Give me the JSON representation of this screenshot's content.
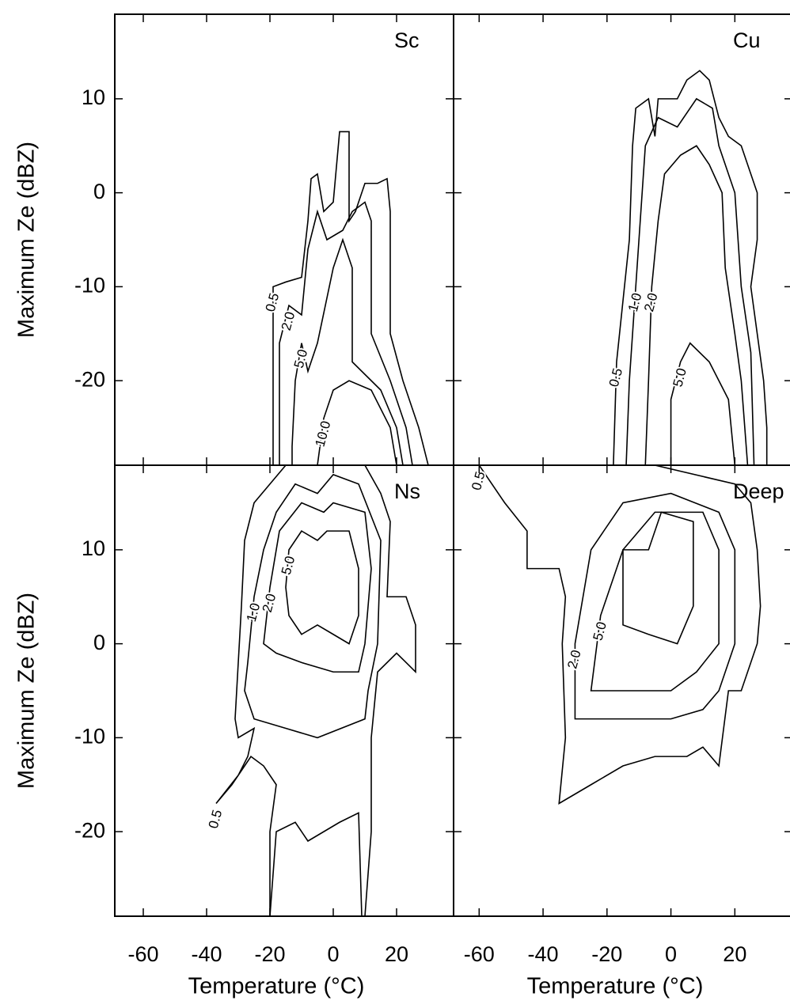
{
  "chart_data": [
    {
      "type": "contour",
      "label": "Sc",
      "ylabel": "Maximum Ze (dBZ)",
      "xlim": [
        -69,
        38
      ],
      "ylim": [
        -29,
        19
      ],
      "xticks": [
        -60,
        -40,
        -20,
        0,
        20
      ],
      "yticks": [
        -20,
        -10,
        0,
        10
      ],
      "show_xtick_labels": false,
      "show_ytick_labels": true,
      "contours": [
        {
          "level": "0.5",
          "rings": [
            {
              "x": [
                -19,
                -19,
                -15,
                -10,
                -8,
                -7,
                -5,
                -3,
                0,
                2,
                5,
                5,
                7,
                10,
                14,
                17,
                18,
                18,
                22,
                27,
                30
              ],
              "y": [
                -29,
                -10,
                -9.5,
                -9,
                -3,
                1.5,
                2,
                -2,
                -1,
                6.5,
                6.5,
                -3,
                -2,
                1,
                1,
                1.5,
                -2,
                -15,
                -20,
                -25,
                -29
              ]
            }
          ]
        },
        {
          "level": "2.0",
          "rings": [
            {
              "x": [
                -17,
                -17,
                -14,
                -10,
                -8,
                -5,
                -2,
                3,
                6,
                10,
                12,
                12,
                18,
                23,
                25
              ],
              "y": [
                -29,
                -16,
                -12,
                -13,
                -6,
                -2,
                -5,
                -4,
                -2,
                -1,
                -3,
                -15,
                -20,
                -25,
                -29
              ]
            }
          ]
        },
        {
          "level": "5.0",
          "rings": [
            {
              "x": [
                -13,
                -12,
                -10,
                -8,
                -5,
                0,
                3,
                6,
                6,
                15,
                20,
                22,
                -13
              ],
              "y": [
                -27,
                -20,
                -16,
                -19,
                -16,
                -8,
                -5,
                -8,
                -18,
                -21,
                -25,
                -29,
                -29
              ]
            }
          ]
        },
        {
          "level": "10.0",
          "rings": [
            {
              "x": [
                -5,
                -3,
                0,
                5,
                12,
                18,
                20
              ],
              "y": [
                -29,
                -24,
                -21,
                -20,
                -21,
                -25,
                -29
              ]
            }
          ]
        }
      ]
    },
    {
      "type": "contour",
      "label": "Cu",
      "xlim": [
        -68,
        38
      ],
      "ylim": [
        -29,
        19
      ],
      "xticks": [
        -60,
        -40,
        -20,
        0,
        20
      ],
      "yticks": [
        -20,
        -10,
        0,
        10
      ],
      "show_xtick_labels": false,
      "show_ytick_labels": false,
      "contours": [
        {
          "level": "0.5",
          "rings": [
            {
              "x": [
                -18,
                -17,
                -13,
                -12,
                -11,
                -7,
                -5,
                -4,
                2,
                5,
                9,
                12,
                15,
                18,
                22,
                25,
                27,
                27,
                25,
                27,
                29,
                30,
                30
              ],
              "y": [
                -29,
                -18,
                -5,
                5,
                9,
                10,
                6,
                10,
                10,
                12,
                13,
                12,
                8,
                6,
                5,
                2,
                0,
                -5,
                -10,
                -15,
                -20,
                -25,
                -29
              ]
            }
          ]
        },
        {
          "level": "1.0",
          "rings": [
            {
              "x": [
                -14,
                -13,
                -11,
                -9,
                -8,
                -4,
                2,
                8,
                13,
                15,
                20,
                22,
                25,
                26
              ],
              "y": [
                -29,
                -20,
                -10,
                0,
                5,
                8,
                7,
                10,
                9,
                5,
                0,
                -10,
                -17,
                -29
              ]
            }
          ]
        },
        {
          "level": "2.0",
          "rings": [
            {
              "x": [
                -8,
                -7,
                -6,
                -4,
                -2,
                3,
                8,
                12,
                16,
                17,
                20,
                22,
                24
              ],
              "y": [
                -29,
                -20,
                -10,
                -3,
                2,
                4,
                5,
                3,
                0,
                -8,
                -15,
                -20,
                -29
              ]
            }
          ]
        },
        {
          "level": "5.0",
          "rings": [
            {
              "x": [
                0,
                0,
                3,
                6,
                12,
                18,
                20
              ],
              "y": [
                -29,
                -22,
                -18,
                -16,
                -18,
                -22,
                -29
              ]
            }
          ]
        }
      ]
    },
    {
      "type": "contour",
      "label": "Ns",
      "ylabel": "Maximum Ze (dBZ)",
      "xlabel": "Temperature (°C)",
      "xlim": [
        -69,
        38
      ],
      "ylim": [
        -29,
        19
      ],
      "xticks": [
        -60,
        -40,
        -20,
        0,
        20
      ],
      "yticks": [
        -20,
        -10,
        0,
        10
      ],
      "show_xtick_labels": true,
      "show_ytick_labels": true,
      "contours": [
        {
          "level": "0.5",
          "rings": [
            {
              "x": [
                -37,
                -30,
                -27,
                -25,
                -30,
                -31,
                -30,
                -29,
                -28,
                -25,
                -20,
                -15,
                10,
                15,
                18,
                17,
                23,
                26,
                26,
                20,
                14,
                12,
                12,
                10,
                -20,
                -20,
                -18,
                -22,
                -26,
                -32
              ],
              "y": [
                -17,
                -14,
                -12,
                -9,
                -10,
                -8,
                -2,
                4,
                11,
                15,
                17,
                19,
                19,
                16,
                13,
                5,
                5,
                2,
                -3,
                -1,
                -3,
                -10,
                -20,
                -29,
                -29,
                -20,
                -15,
                -13,
                -12,
                -15
              ]
            }
          ]
        },
        {
          "level": "1.0",
          "rings": [
            {
              "x": [
                -28,
                -27,
                -25,
                -22,
                -18,
                -12,
                -5,
                0,
                8,
                15,
                14,
                11,
                10,
                -5,
                -15,
                -25
              ],
              "y": [
                -5,
                -2,
                5,
                10,
                14,
                17,
                16,
                18,
                17,
                11,
                0,
                -5,
                -8,
                -10,
                -9,
                -8
              ]
            }
          ]
        },
        {
          "level": "2.0",
          "rings": [
            {
              "x": [
                -22,
                -20,
                -17,
                -10,
                -3,
                0,
                10,
                12,
                10,
                8,
                0,
                -10,
                -18
              ],
              "y": [
                0,
                6,
                12,
                15,
                14,
                15,
                14,
                8,
                0,
                -3,
                -3,
                -2,
                -1
              ]
            },
            {
              "x": [
                -20,
                -18,
                -12,
                -8,
                2,
                8,
                9
              ],
              "y": [
                -29,
                -20,
                -19,
                -21,
                -19,
                -18,
                -29
              ]
            }
          ]
        },
        {
          "level": "5.0",
          "rings": [
            {
              "x": [
                -15,
                -14,
                -10,
                -5,
                -2,
                5,
                8,
                8,
                5,
                0,
                -5,
                -10,
                -14
              ],
              "y": [
                6,
                10,
                12,
                11,
                12,
                12,
                8,
                3,
                0,
                1,
                2,
                1,
                3
              ]
            }
          ]
        }
      ]
    },
    {
      "type": "contour",
      "label": "Deep",
      "xlabel": "Temperature (°C)",
      "xlim": [
        -68,
        38
      ],
      "ylim": [
        -29,
        19
      ],
      "xticks": [
        -60,
        -40,
        -20,
        0,
        20
      ],
      "yticks": [
        -20,
        -10,
        0,
        10
      ],
      "show_xtick_labels": true,
      "show_ytick_labels": false,
      "contours": [
        {
          "level": "0.5",
          "rings": [
            {
              "x": [
                -35,
                -33,
                -34,
                -33,
                -35,
                -45,
                -45,
                -52,
                -60,
                -5,
                20,
                25,
                27,
                28,
                27,
                22,
                18,
                15,
                10,
                5,
                -5,
                -15,
                -25,
                -30
              ],
              "y": [
                -17,
                -10,
                0,
                5,
                8,
                8,
                12,
                15,
                19,
                19,
                17,
                15,
                10,
                4,
                0,
                -5,
                -5,
                -13,
                -11,
                -12,
                -12,
                -13,
                -15,
                -16
              ]
            }
          ]
        },
        {
          "level": "2.0",
          "rings": [
            {
              "x": [
                -30,
                -30,
                -25,
                -15,
                0,
                15,
                20,
                20,
                15,
                10,
                0,
                -15
              ],
              "y": [
                -8,
                0,
                10,
                15,
                16,
                14,
                10,
                0,
                -5,
                -7,
                -8,
                -8
              ]
            }
          ]
        },
        {
          "level": "5.0",
          "rings": [
            {
              "x": [
                -25,
                -22,
                -15,
                -5,
                10,
                15,
                15,
                8,
                0,
                -15
              ],
              "y": [
                -5,
                3,
                10,
                14,
                14,
                10,
                0,
                -3,
                -5,
                -5
              ]
            },
            {
              "x": [
                -15,
                -15,
                -7,
                -3,
                7,
                7,
                2,
                -7
              ],
              "y": [
                2,
                10,
                10,
                14,
                13,
                4,
                0,
                1
              ]
            }
          ]
        }
      ]
    }
  ]
}
